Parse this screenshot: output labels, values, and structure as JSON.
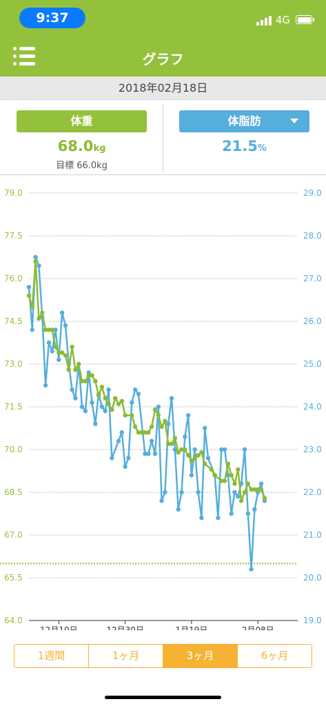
{
  "status_bar": {
    "time": "9:37",
    "network": "4G"
  },
  "header": {
    "title": "グラフ",
    "menu_icon": "list-menu-icon"
  },
  "date": "2018年02月18日",
  "summary": {
    "weight": {
      "button_label": "体重",
      "value": "68.0",
      "unit": "kg",
      "goal_label": "目標 66.0kg",
      "color": "#94c13c"
    },
    "body_fat": {
      "button_label": "体脂肪",
      "value": "21.5",
      "unit": "%",
      "color": "#56aedc",
      "dropdown_icon": "dropdown-arrow-icon"
    }
  },
  "period_tabs": [
    {
      "label": "1週間",
      "active": false
    },
    {
      "label": "1ヶ月",
      "active": false
    },
    {
      "label": "3ヶ月",
      "active": true
    },
    {
      "label": "6ヶ月",
      "active": false
    }
  ],
  "chart_data": {
    "type": "line",
    "x_tick_labels": [
      "12月10日",
      "12月30日",
      "1月19日",
      "2月08日"
    ],
    "x_tick_days": [
      9,
      29,
      49,
      69
    ],
    "x_range": [
      0,
      81
    ],
    "y_left": {
      "range": [
        64.0,
        79.0
      ],
      "ticks": [
        "79.0",
        "77.5",
        "76.0",
        "74.5",
        "73.0",
        "71.5",
        "70.0",
        "68.5",
        "67.0",
        "65.5",
        "64.0"
      ],
      "color": "#94c13c"
    },
    "y_right": {
      "range": [
        19.0,
        29.0
      ],
      "ticks": [
        "29.0",
        "28.0",
        "27.0",
        "26.0",
        "25.0",
        "24.0",
        "23.0",
        "22.0",
        "21.0",
        "20.0",
        "19.0"
      ],
      "color": "#56aedc"
    },
    "goal_weight": 66.0,
    "series": [
      {
        "axis": "left",
        "color": "#8cba33",
        "x": [
          0,
          1,
          2,
          3,
          4,
          5,
          6,
          7,
          8,
          9,
          10,
          11,
          12,
          13,
          14,
          15,
          16,
          17,
          18,
          19,
          20,
          21,
          22,
          23,
          24,
          25,
          26,
          27,
          28,
          29,
          31,
          32,
          33,
          34,
          35,
          36,
          37,
          38,
          39,
          40,
          41,
          42,
          43,
          44,
          45,
          46,
          47,
          48,
          49,
          50,
          51,
          52,
          53,
          55,
          56,
          58,
          59,
          60,
          61,
          62,
          63,
          64,
          65,
          66,
          67,
          68,
          69,
          70,
          71
        ],
        "values": [
          75.4,
          75.0,
          76.6,
          74.6,
          74.8,
          74.2,
          74.2,
          74.2,
          73.6,
          73.4,
          73.4,
          73.3,
          72.8,
          73.6,
          72.8,
          73.0,
          72.4,
          72.4,
          72.6,
          72.6,
          72.4,
          71.9,
          72.2,
          71.8,
          71.6,
          71.4,
          71.8,
          71.6,
          71.7,
          71.2,
          71.2,
          70.8,
          70.6,
          70.6,
          70.6,
          70.6,
          70.8,
          71.4,
          71.2,
          70.8,
          71.0,
          70.2,
          70.2,
          70.4,
          69.9,
          70.0,
          70.0,
          69.8,
          69.6,
          69.7,
          69.8,
          69.9,
          69.5,
          69.3,
          69.1,
          68.9,
          68.9,
          69.5,
          69.1,
          68.8,
          69.3,
          68.2,
          68.5,
          68.8,
          68.6,
          68.6,
          68.6,
          68.6,
          68.3
        ]
      },
      {
        "axis": "right",
        "color": "#56aedc",
        "x": [
          0,
          1,
          2,
          3,
          4,
          5,
          6,
          7,
          8,
          9,
          10,
          11,
          12,
          13,
          14,
          15,
          16,
          17,
          18,
          19,
          20,
          21,
          22,
          23,
          24,
          25,
          27,
          28,
          29,
          30,
          31,
          32,
          33,
          35,
          36,
          37,
          38,
          39,
          40,
          41,
          42,
          43,
          44,
          45,
          46,
          47,
          48,
          49,
          50,
          51,
          52,
          53,
          54,
          56,
          57,
          58,
          59,
          60,
          61,
          62,
          63,
          64,
          65,
          66,
          67,
          68,
          69,
          70,
          71
        ],
        "values": [
          26.8,
          25.8,
          27.5,
          27.3,
          26.1,
          24.5,
          25.5,
          25.3,
          25.8,
          25.1,
          26.2,
          25.9,
          25.0,
          24.4,
          24.2,
          25.0,
          24.0,
          23.9,
          24.8,
          24.1,
          23.6,
          24.3,
          24.0,
          23.9,
          24.4,
          22.8,
          23.2,
          23.4,
          22.6,
          22.8,
          24.1,
          24.4,
          24.3,
          22.9,
          22.9,
          23.2,
          22.9,
          24.0,
          21.8,
          22.0,
          23.6,
          24.2,
          23.0,
          21.6,
          22.0,
          23.3,
          23.8,
          22.4,
          23.0,
          22.0,
          21.4,
          23.5,
          22.8,
          22.4,
          21.4,
          23.0,
          23.0,
          22.4,
          21.5,
          22.0,
          21.9,
          22.2,
          23.0,
          21.5,
          20.2,
          21.6,
          22.0,
          22.2,
          21.8
        ]
      }
    ]
  }
}
